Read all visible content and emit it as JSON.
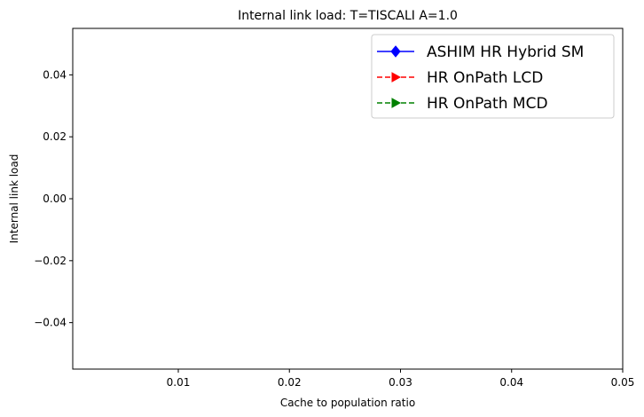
{
  "chart_data": {
    "type": "line",
    "title": "Internal link load: T=TISCALI A=1.0",
    "xlabel": "Cache to population ratio",
    "ylabel": "Internal link load",
    "xlim": [
      0.0005,
      0.05
    ],
    "ylim": [
      -0.055,
      0.055
    ],
    "xticks": [
      0.01,
      0.02,
      0.03,
      0.04,
      0.05
    ],
    "xtick_labels": [
      "0.01",
      "0.02",
      "0.03",
      "0.04",
      "0.05"
    ],
    "yticks": [
      0.04,
      0.02,
      0.0,
      -0.02,
      -0.04
    ],
    "ytick_labels": [
      "0.04",
      "0.02",
      "0.00",
      "−0.02",
      "−0.04"
    ],
    "grid": false,
    "legend_position": "top-right",
    "series": [
      {
        "name": "ASHIM HR Hybrid SM",
        "color": "#0000ff",
        "line_style": "solid",
        "marker": "diamond",
        "x": [],
        "y": []
      },
      {
        "name": "HR OnPath LCD",
        "color": "#ff0000",
        "line_style": "dashed",
        "marker": "triangle-right",
        "x": [],
        "y": []
      },
      {
        "name": "HR OnPath MCD",
        "color": "#008000",
        "line_style": "dashed",
        "marker": "triangle-right",
        "x": [],
        "y": []
      }
    ]
  }
}
